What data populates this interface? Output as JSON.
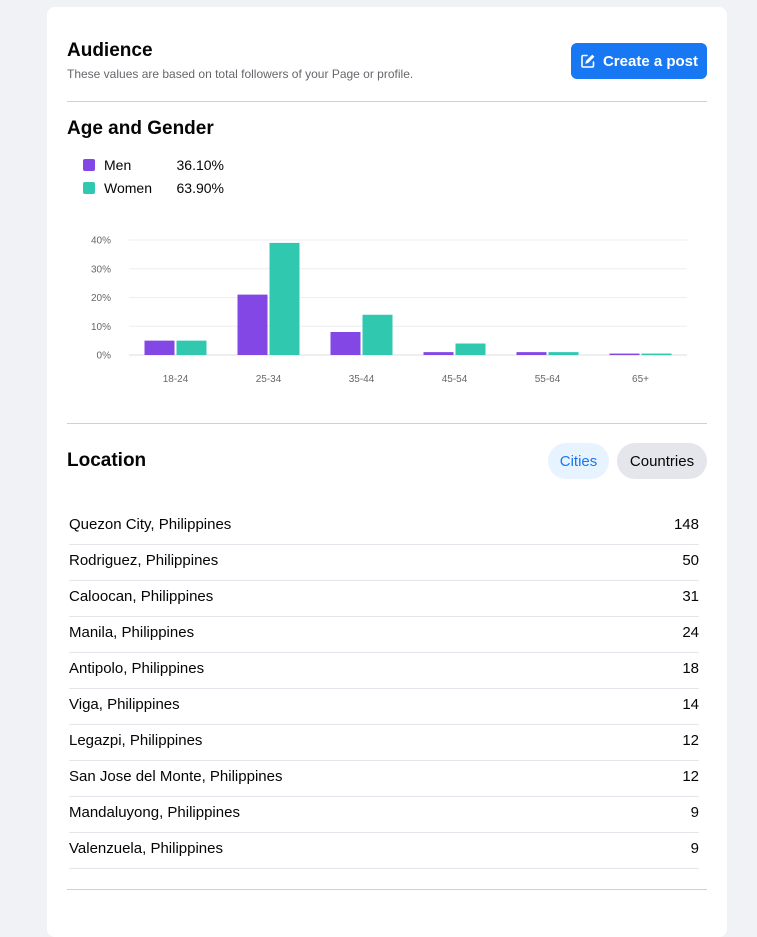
{
  "audience": {
    "title": "Audience",
    "subtitle": "These values are based on total followers of your Page or profile.",
    "create_post_label": "Create a post"
  },
  "age_gender": {
    "title": "Age and Gender",
    "legend": [
      {
        "name": "Men",
        "value": "36.10%",
        "color": "#8247e5"
      },
      {
        "name": "Women",
        "value": "63.90%",
        "color": "#30c9b0"
      }
    ]
  },
  "chart_data": {
    "type": "bar",
    "categories": [
      "18-24",
      "25-34",
      "35-44",
      "45-54",
      "55-64",
      "65+"
    ],
    "series": [
      {
        "name": "Men",
        "values": [
          5,
          21,
          8,
          1,
          1,
          0.5
        ],
        "color": "#8247e5"
      },
      {
        "name": "Women",
        "values": [
          5,
          39,
          14,
          4,
          1,
          0.5
        ],
        "color": "#30c9b0"
      }
    ],
    "yticks": [
      "0%",
      "10%",
      "20%",
      "30%",
      "40%"
    ],
    "ylim": [
      0,
      40
    ],
    "grid": true
  },
  "location": {
    "title": "Location",
    "tabs": [
      {
        "label": "Cities",
        "selected": true
      },
      {
        "label": "Countries",
        "selected": false
      }
    ],
    "rows": [
      {
        "name": "Quezon City, Philippines",
        "count": "148"
      },
      {
        "name": "Rodriguez, Philippines",
        "count": "50"
      },
      {
        "name": "Caloocan, Philippines",
        "count": "31"
      },
      {
        "name": "Manila, Philippines",
        "count": "24"
      },
      {
        "name": "Antipolo, Philippines",
        "count": "18"
      },
      {
        "name": "Viga, Philippines",
        "count": "14"
      },
      {
        "name": "Legazpi, Philippines",
        "count": "12"
      },
      {
        "name": "San Jose del Monte, Philippines",
        "count": "12"
      },
      {
        "name": "Mandaluyong, Philippines",
        "count": "9"
      },
      {
        "name": "Valenzuela, Philippines",
        "count": "9"
      }
    ]
  }
}
